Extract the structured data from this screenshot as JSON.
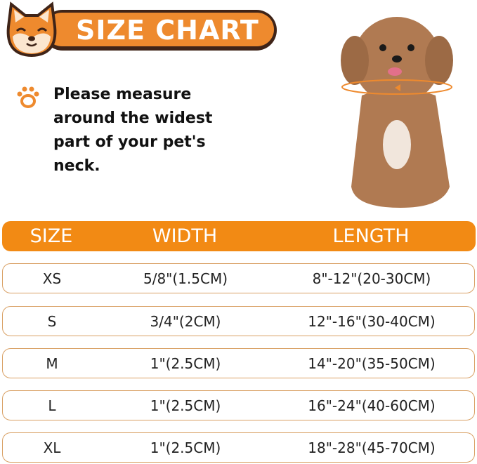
{
  "header": {
    "title": "SIZE CHART",
    "brand_color": "#ee8a2e",
    "outline_color": "#3f2418"
  },
  "instruction": {
    "icon": "paw-icon",
    "text": "Please measure around the widest part of your pet's neck."
  },
  "table": {
    "columns": [
      "SIZE",
      "WIDTH",
      "LENGTH"
    ],
    "header_color": "#f28a14",
    "rows": [
      {
        "size": "XS",
        "width": "5/8\"(1.5CM)",
        "length": "8\"-12\"(20-30CM)"
      },
      {
        "size": "S",
        "width": "3/4\"(2CM)",
        "length": "12\"-16\"(30-40CM)"
      },
      {
        "size": "M",
        "width": "1\"(2.5CM)",
        "length": "14\"-20\"(35-50CM)"
      },
      {
        "size": "L",
        "width": "1\"(2.5CM)",
        "length": "16\"-24\"(40-60CM)"
      },
      {
        "size": "XL",
        "width": "1\"(2.5CM)",
        "length": "18\"-28\"(45-70CM)"
      }
    ]
  }
}
